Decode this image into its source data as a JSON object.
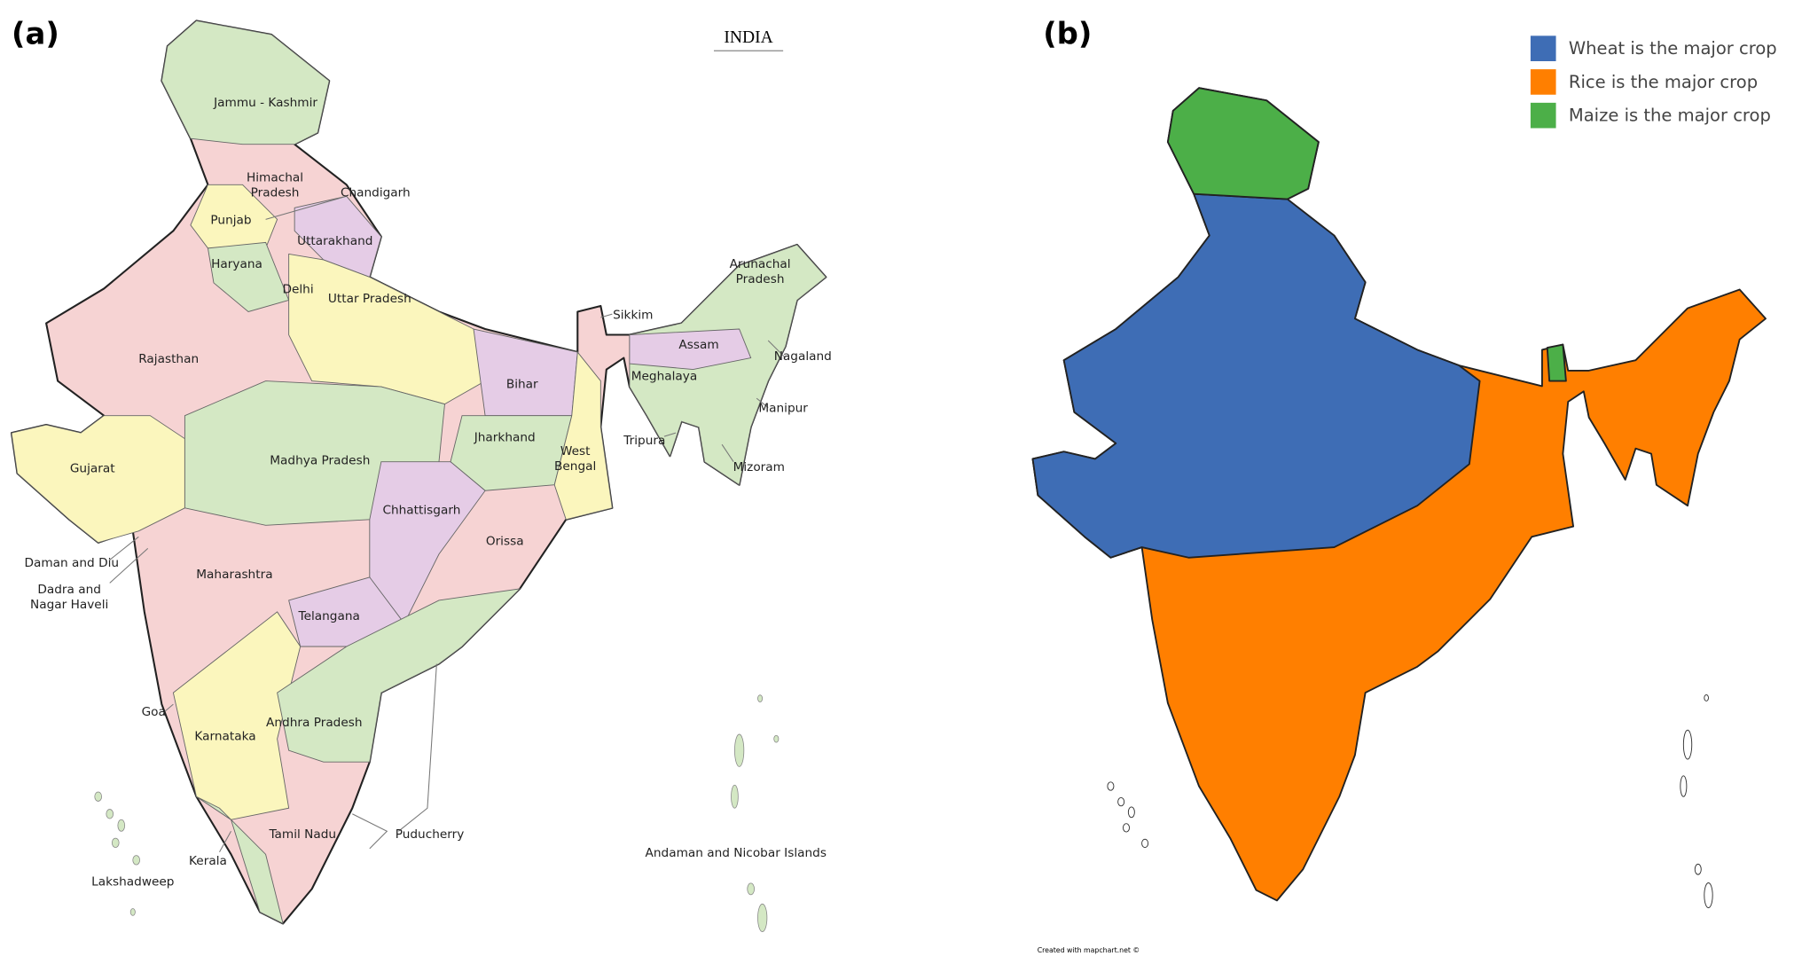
{
  "panels": [
    {
      "label": "(a)",
      "title": "INDIA",
      "states": [
        {
          "label": [
            "Jammu - Kashmir"
          ]
        },
        {
          "label": [
            "Himachal",
            "Pradesh"
          ]
        },
        {
          "label": [
            "Chandigarh"
          ]
        },
        {
          "label": [
            "Punjab"
          ]
        },
        {
          "label": [
            "Uttarakhand"
          ]
        },
        {
          "label": [
            "Haryana"
          ]
        },
        {
          "label": [
            "Delhi"
          ]
        },
        {
          "label": [
            "Uttar Pradesh"
          ]
        },
        {
          "label": [
            "Sikkim"
          ]
        },
        {
          "label": [
            "Arunachal",
            "Pradesh"
          ]
        },
        {
          "label": [
            "Assam"
          ]
        },
        {
          "label": [
            "Nagaland"
          ]
        },
        {
          "label": [
            "Rajasthan"
          ]
        },
        {
          "label": [
            "Meghalaya"
          ]
        },
        {
          "label": [
            "Bihar"
          ]
        },
        {
          "label": [
            "Manipur"
          ]
        },
        {
          "label": [
            "Jharkhand"
          ]
        },
        {
          "label": [
            "West",
            "Bengal"
          ]
        },
        {
          "label": [
            "Tripura"
          ]
        },
        {
          "label": [
            "Gujarat"
          ]
        },
        {
          "label": [
            "Madhya Pradesh"
          ]
        },
        {
          "label": [
            "Mizoram"
          ]
        },
        {
          "label": [
            "Chhattisgarh"
          ]
        },
        {
          "label": [
            "Orissa"
          ]
        },
        {
          "label": [
            "Daman and Diu"
          ]
        },
        {
          "label": [
            "Maharashtra"
          ]
        },
        {
          "label": [
            "Dadra and",
            "Nagar Haveli"
          ]
        },
        {
          "label": [
            "Telangana"
          ]
        },
        {
          "label": [
            "Goa"
          ]
        },
        {
          "label": [
            "Karnataka"
          ]
        },
        {
          "label": [
            "Andhra Pradesh"
          ]
        },
        {
          "label": [
            "Tamil Nadu"
          ]
        },
        {
          "label": [
            "Puducherry"
          ]
        },
        {
          "label": [
            "Kerala"
          ]
        },
        {
          "label": [
            "Andaman and Nicobar Islands"
          ]
        },
        {
          "label": [
            "Lakshadweep"
          ]
        }
      ]
    },
    {
      "label": "(b)",
      "legend": [
        {
          "label": "Wheat is the major crop",
          "color": "#3e6db5"
        },
        {
          "label": "Rice is the major crop",
          "color": "#ff7f00"
        },
        {
          "label": "Maize is the major crop",
          "color": "#4caf48"
        }
      ],
      "credit": "Created with mapchart.net ©"
    }
  ]
}
